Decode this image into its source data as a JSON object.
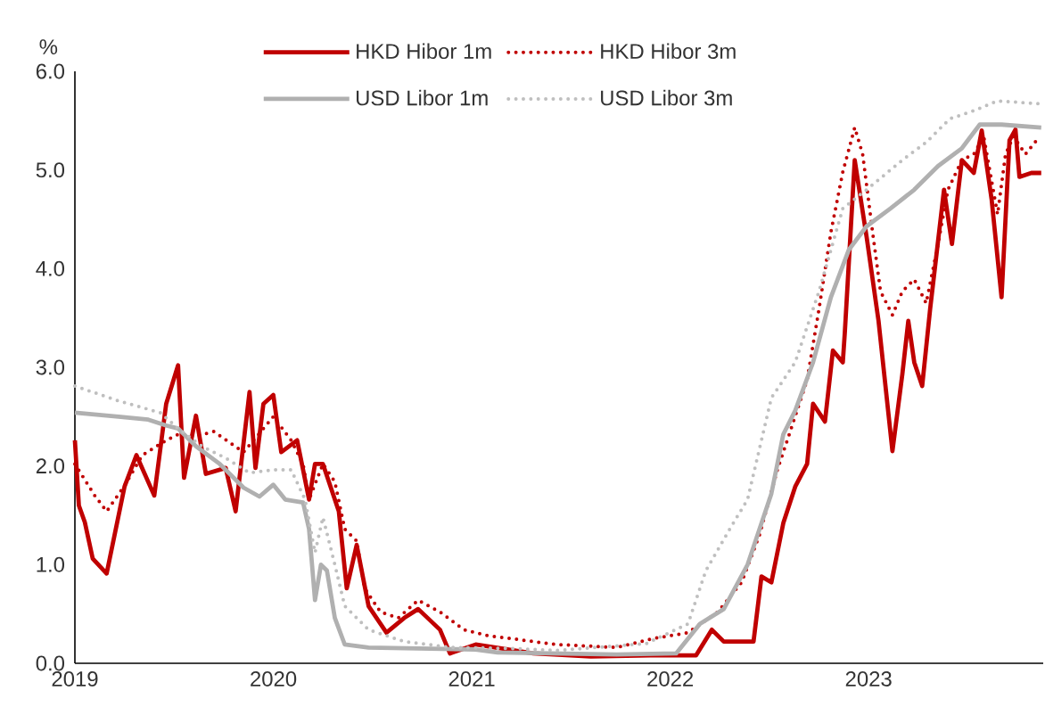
{
  "chart_data": {
    "type": "line",
    "ylabel": "%",
    "legend": "top",
    "marker": "none",
    "grid": false,
    "xlim": [
      2019,
      2023.88
    ],
    "xticks": [
      2019,
      2020,
      2021,
      2022,
      2023
    ],
    "ylim": [
      0,
      6
    ],
    "yticks": [
      {
        "value": 0,
        "label": "0.0"
      },
      {
        "value": 1,
        "label": "1.0"
      },
      {
        "value": 2,
        "label": "2.0"
      },
      {
        "value": 3,
        "label": "3.0"
      },
      {
        "value": 4,
        "label": "4.0"
      },
      {
        "value": 5,
        "label": "5.0"
      },
      {
        "value": 6,
        "label": "6.0"
      }
    ],
    "series": [
      {
        "name": "HKD Hibor 1m",
        "color": "#c00000",
        "line_style": "solid",
        "x": [
          2019.0,
          2019.02,
          2019.05,
          2019.09,
          2019.16,
          2019.25,
          2019.31,
          2019.4,
          2019.46,
          2019.52,
          2019.55,
          2019.61,
          2019.66,
          2019.76,
          2019.81,
          2019.88,
          2019.91,
          2019.95,
          2020.0,
          2020.04,
          2020.12,
          2020.18,
          2020.21,
          2020.25,
          2020.33,
          2020.37,
          2020.42,
          2020.48,
          2020.57,
          2020.66,
          2020.73,
          2020.84,
          2020.89,
          2021.02,
          2021.31,
          2021.6,
          2021.9,
          2022.13,
          2022.21,
          2022.27,
          2022.42,
          2022.46,
          2022.51,
          2022.57,
          2022.63,
          2022.69,
          2022.72,
          2022.78,
          2022.82,
          2022.87,
          2022.88,
          2022.93,
          2022.99,
          2023.05,
          2023.12,
          2023.17,
          2023.2,
          2023.23,
          2023.27,
          2023.31,
          2023.38,
          2023.42,
          2023.47,
          2023.53,
          2023.57,
          2023.62,
          2023.67,
          2023.71,
          2023.74,
          2023.76,
          2023.82,
          2023.87
        ],
        "values": [
          2.26,
          1.6,
          1.43,
          1.06,
          0.91,
          1.79,
          2.11,
          1.7,
          2.63,
          3.02,
          1.88,
          2.51,
          1.92,
          1.98,
          1.54,
          2.75,
          1.98,
          2.63,
          2.72,
          2.14,
          2.26,
          1.66,
          2.02,
          2.02,
          1.54,
          0.76,
          1.2,
          0.58,
          0.31,
          0.46,
          0.55,
          0.34,
          0.1,
          0.19,
          0.1,
          0.07,
          0.08,
          0.08,
          0.34,
          0.22,
          0.22,
          0.88,
          0.82,
          1.42,
          1.79,
          2.02,
          2.63,
          2.45,
          3.17,
          3.05,
          3.35,
          5.1,
          4.32,
          3.47,
          2.15,
          2.93,
          3.47,
          3.05,
          2.81,
          3.59,
          4.8,
          4.25,
          5.1,
          4.97,
          5.4,
          4.7,
          3.71,
          5.3,
          5.41,
          4.93,
          4.97,
          4.97
        ]
      },
      {
        "name": "HKD Hibor 3m",
        "color": "#c00000",
        "line_style": "dotted",
        "x": [
          2019.0,
          2019.1,
          2019.16,
          2019.25,
          2019.34,
          2019.46,
          2019.52,
          2019.61,
          2019.7,
          2019.85,
          2019.93,
          2020.0,
          2020.09,
          2020.15,
          2020.18,
          2020.25,
          2020.31,
          2020.36,
          2020.42,
          2020.46,
          2020.54,
          2020.63,
          2020.73,
          2020.84,
          2020.96,
          2021.08,
          2021.2,
          2021.31,
          2021.43,
          2021.73,
          2021.91,
          2022.09,
          2022.24,
          2022.36,
          2022.45,
          2022.54,
          2022.6,
          2022.69,
          2022.75,
          2022.81,
          2022.87,
          2022.93,
          2022.97,
          2023.02,
          2023.06,
          2023.12,
          2023.17,
          2023.23,
          2023.29,
          2023.35,
          2023.4,
          2023.47,
          2023.53,
          2023.58,
          2023.65,
          2023.69,
          2023.73,
          2023.79,
          2023.85
        ],
        "values": [
          2.02,
          1.7,
          1.54,
          1.8,
          2.11,
          2.26,
          2.32,
          2.3,
          2.35,
          2.14,
          2.33,
          2.5,
          2.26,
          2.02,
          1.66,
          2.02,
          1.84,
          1.36,
          1.24,
          0.76,
          0.52,
          0.46,
          0.64,
          0.52,
          0.34,
          0.28,
          0.25,
          0.22,
          0.19,
          0.16,
          0.25,
          0.31,
          0.52,
          0.82,
          1.3,
          1.96,
          2.32,
          2.87,
          3.59,
          4.37,
          4.98,
          5.43,
          5.16,
          4.37,
          3.77,
          3.53,
          3.77,
          3.89,
          3.65,
          4.25,
          4.8,
          5.1,
          5.16,
          5.34,
          4.55,
          5.16,
          5.34,
          5.16,
          5.31
        ]
      },
      {
        "name": "USD Libor 1m",
        "color": "#b0b0b0",
        "line_style": "solid",
        "x": [
          2019.0,
          2019.22,
          2019.37,
          2019.46,
          2019.52,
          2019.61,
          2019.73,
          2019.85,
          2019.93,
          2020.0,
          2020.06,
          2020.15,
          2020.18,
          2020.21,
          2020.24,
          2020.27,
          2020.31,
          2020.36,
          2020.48,
          2020.73,
          2021.02,
          2021.13,
          2021.73,
          2022.03,
          2022.15,
          2022.27,
          2022.39,
          2022.51,
          2022.57,
          2022.63,
          2022.72,
          2022.81,
          2022.9,
          2022.99,
          2023.11,
          2023.23,
          2023.35,
          2023.47,
          2023.56,
          2023.67,
          2023.87
        ],
        "values": [
          2.54,
          2.5,
          2.47,
          2.41,
          2.38,
          2.2,
          2.02,
          1.78,
          1.69,
          1.81,
          1.66,
          1.63,
          1.36,
          0.64,
          1.0,
          0.94,
          0.46,
          0.19,
          0.16,
          0.15,
          0.14,
          0.11,
          0.09,
          0.1,
          0.4,
          0.55,
          1.0,
          1.72,
          2.32,
          2.56,
          3.05,
          3.71,
          4.19,
          4.43,
          4.61,
          4.8,
          5.04,
          5.22,
          5.46,
          5.46,
          5.43
        ]
      },
      {
        "name": "USD Libor 3m",
        "color": "#bfbfbf",
        "line_style": "dotted",
        "x": [
          2019.0,
          2019.22,
          2019.43,
          2019.52,
          2019.64,
          2019.76,
          2019.88,
          2020.0,
          2020.09,
          2020.16,
          2020.21,
          2020.25,
          2020.31,
          2020.36,
          2020.48,
          2020.66,
          2020.9,
          2021.2,
          2021.43,
          2021.88,
          2022.09,
          2022.18,
          2022.3,
          2022.39,
          2022.51,
          2022.63,
          2022.75,
          2022.87,
          2022.99,
          2023.17,
          2023.29,
          2023.41,
          2023.53,
          2023.65,
          2023.87
        ],
        "values": [
          2.81,
          2.66,
          2.54,
          2.38,
          2.2,
          2.08,
          1.93,
          1.96,
          1.96,
          1.66,
          1.12,
          1.48,
          1.0,
          0.58,
          0.34,
          0.22,
          0.16,
          0.15,
          0.13,
          0.2,
          0.4,
          0.94,
          1.36,
          1.66,
          2.69,
          3.05,
          3.77,
          4.61,
          4.8,
          5.1,
          5.28,
          5.52,
          5.6,
          5.7,
          5.67
        ]
      }
    ]
  }
}
